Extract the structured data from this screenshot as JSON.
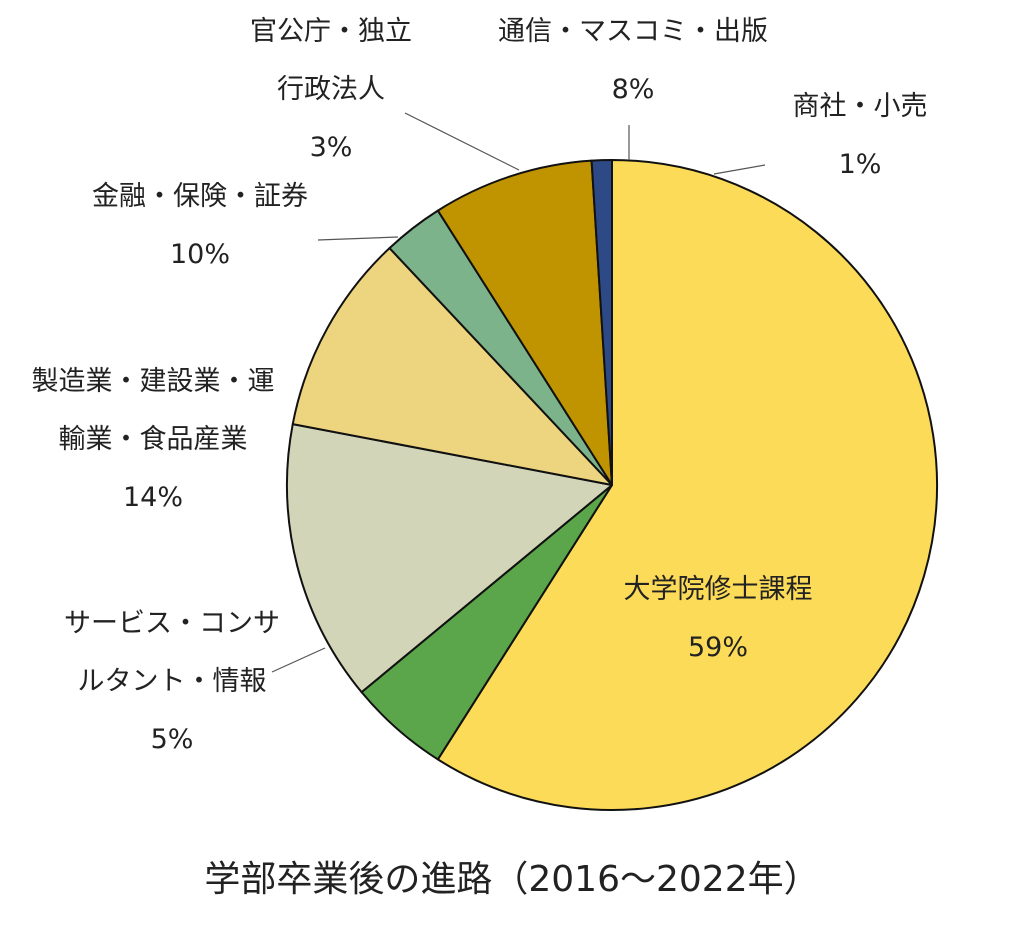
{
  "chart_data": {
    "type": "pie",
    "title": "学部卒業後の進路（2016～2022年）",
    "start": "top, clockwise",
    "slices": [
      {
        "name": "大学院修士課程",
        "value": 59,
        "label": "59%",
        "color": "#FBDB58",
        "name_lines": [
          "大学院修士課程"
        ]
      },
      {
        "name": "サービス・コンサルタント・情報",
        "value": 5,
        "label": "5%",
        "color": "#5BA54A",
        "name_lines": [
          "サービス・コンサ",
          "ルタント・情報"
        ]
      },
      {
        "name": "製造業・建設業・運輸業・食品産業",
        "value": 14,
        "label": "14%",
        "color": "#D3D5B8",
        "name_lines": [
          "製造業・建設業・運",
          "輸業・食品産業"
        ]
      },
      {
        "name": "金融・保険・証券",
        "value": 10,
        "label": "10%",
        "color": "#EDD47F",
        "name_lines": [
          "金融・保険・証券"
        ]
      },
      {
        "name": "官公庁・独立行政法人",
        "value": 3,
        "label": "3%",
        "color": "#7DB38A",
        "name_lines": [
          "官公庁・独立",
          "行政法人"
        ]
      },
      {
        "name": "通信・マスコミ・出版",
        "value": 8,
        "label": "8%",
        "color": "#C09400",
        "name_lines": [
          "通信・マスコミ・出版"
        ]
      },
      {
        "name": "商社・小売",
        "value": 1,
        "label": "1%",
        "color": "#2D4A86",
        "name_lines": [
          "商社・小売"
        ]
      }
    ]
  }
}
